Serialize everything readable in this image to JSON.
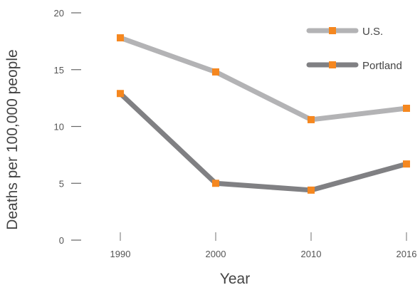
{
  "chart_data": {
    "type": "line",
    "xlabel": "Year",
    "ylabel": "Deaths per 100,000 people",
    "x": [
      "1990",
      "2000",
      "2010",
      "2016"
    ],
    "ylim": [
      0,
      20
    ],
    "yticks": [
      0,
      5,
      10,
      15,
      20
    ],
    "grid": false,
    "legend": "top-right",
    "marker_color": "#f5871f",
    "series": [
      {
        "name": "U.S.",
        "values": [
          17.8,
          14.8,
          10.6,
          11.6
        ],
        "color": "#b3b3b5"
      },
      {
        "name": "Portland",
        "values": [
          12.9,
          5.0,
          4.4,
          6.7
        ],
        "color": "#808083"
      }
    ]
  }
}
